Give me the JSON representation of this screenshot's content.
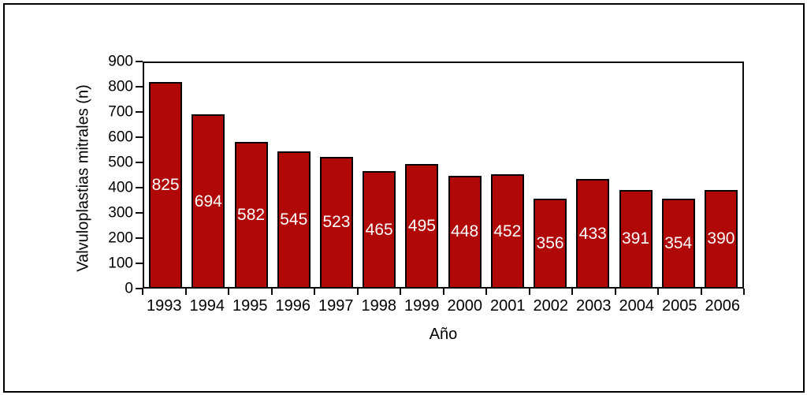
{
  "figure": {
    "background": "#ffffff",
    "border_color": "#000000"
  },
  "chart_data": {
    "type": "bar",
    "title": "",
    "categories": [
      "1993",
      "1994",
      "1995",
      "1996",
      "1997",
      "1998",
      "1999",
      "2000",
      "2001",
      "2002",
      "2003",
      "2004",
      "2005",
      "2006"
    ],
    "values": [
      825,
      694,
      582,
      545,
      523,
      465,
      495,
      448,
      452,
      356,
      433,
      391,
      354,
      390
    ],
    "xlabel": "Año",
    "ylabel": "Valvuloplastias mitrales (n)",
    "ylim": [
      0,
      900
    ],
    "yticks": [
      0,
      100,
      200,
      300,
      400,
      500,
      600,
      700,
      800,
      900
    ],
    "grid": false,
    "legend": "none",
    "bar_color": "#b00707",
    "bar_border_color": "#000000",
    "value_label_color": "#ffffff",
    "axis_color": "#0a0a0a",
    "text_color": "#000000"
  }
}
